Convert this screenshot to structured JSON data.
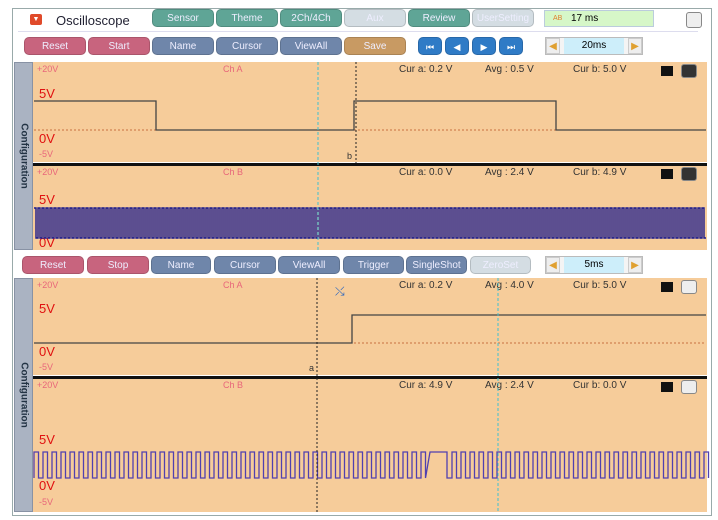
{
  "header": {
    "title": "Oscilloscope",
    "tabs": [
      "Sensor",
      "Theme",
      "2Ch/4Ch",
      "Aux",
      "Review",
      "UserSetting"
    ],
    "timing_label": "AB",
    "timing_value": "17 ms"
  },
  "toolbar1": {
    "reset": "Reset",
    "start": "Start",
    "name": "Name",
    "cursor": "Cursor",
    "viewall": "ViewAll",
    "save": "Save",
    "timebase": "20ms"
  },
  "toolbar2": {
    "reset": "Reset",
    "stop": "Stop",
    "name": "Name",
    "cursor": "Cursor",
    "viewall": "ViewAll",
    "trigger": "Trigger",
    "singleshot": "SingleShot",
    "zeroset": "ZeroSet",
    "timebase": "5ms"
  },
  "config_label": "Configuration",
  "top": {
    "chA": {
      "name": "Ch A",
      "range": "+20V",
      "v5": "5V",
      "v0": "0V",
      "vneg": "-5V",
      "cur_a": "Cur a: 0.2 V",
      "avg": "Avg  : 0.5 V",
      "cur_b": "Cur b: 5.0 V",
      "cursor_b": "b"
    },
    "chB": {
      "name": "Ch B",
      "range": "+20V",
      "v5": "5V",
      "v0": "0V",
      "cur_a": "Cur a: 0.0 V",
      "avg": "Avg  : 2.4 V",
      "cur_b": "Cur b: 4.9 V"
    }
  },
  "bottom": {
    "chA": {
      "name": "Ch A",
      "range": "+20V",
      "v5": "5V",
      "v0": "0V",
      "vneg": "-5V",
      "cur_a": "Cur a: 0.2 V",
      "avg": "Avg  : 4.0 V",
      "cur_b": "Cur b: 5.0 V",
      "cursor_a": "a"
    },
    "chB": {
      "name": "Ch B",
      "range": "+20V",
      "v5": "5V",
      "v0": "0V",
      "vneg": "-5V",
      "cur_a": "Cur a: 4.9 V",
      "avg": "Avg  : 2.4 V",
      "cur_b": "Cur b: 0.0 V"
    }
  },
  "colors": {
    "panel": "#f6cc9a",
    "trace_b": "#1a1a8c",
    "trace_a": "#444444",
    "cursor_cyan": "#40c0d0"
  }
}
